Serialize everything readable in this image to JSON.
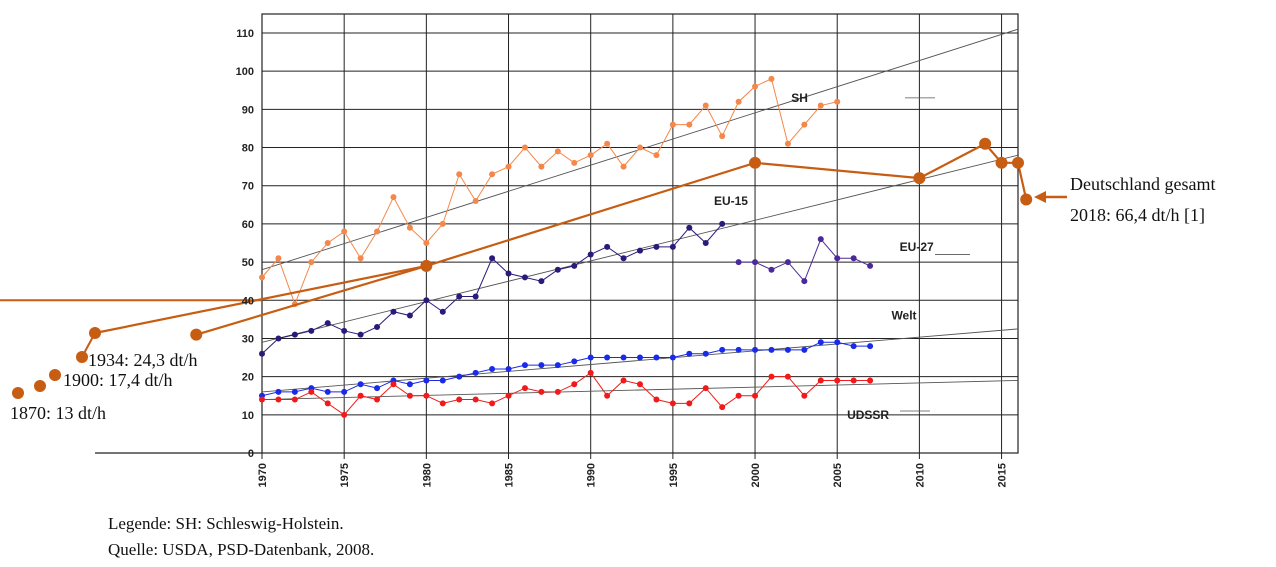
{
  "chart_data": {
    "type": "line",
    "xlim": [
      1970,
      2016
    ],
    "ylim": [
      0,
      110
    ],
    "grid": true,
    "x_ticks": [
      "1970",
      "1975",
      "1980",
      "1985",
      "1990",
      "1995",
      "2000",
      "2005",
      "2010",
      "2015"
    ],
    "y_ticks": [
      "0",
      "10",
      "20",
      "30",
      "40",
      "50",
      "60",
      "70",
      "80",
      "90",
      "100",
      "110"
    ],
    "series": [
      {
        "name": "SH",
        "color": "#f4874a",
        "x": [
          1970,
          1971,
          1972,
          1973,
          1974,
          1975,
          1976,
          1977,
          1978,
          1979,
          1980,
          1981,
          1982,
          1983,
          1984,
          1985,
          1986,
          1987,
          1988,
          1989,
          1990,
          1991,
          1992,
          1993,
          1994,
          1995,
          1996,
          1997,
          1998,
          1999,
          2000,
          2001,
          2002,
          2003,
          2004,
          2005
        ],
        "y": [
          46,
          51,
          39,
          50,
          55,
          58,
          51,
          58,
          67,
          59,
          55,
          60,
          73,
          66,
          73,
          75,
          80,
          75,
          79,
          76,
          78,
          81,
          75,
          80,
          78,
          86,
          86,
          91,
          83,
          92,
          96,
          98,
          81,
          86,
          91,
          92
        ]
      },
      {
        "name": "EU-15",
        "color": "#2a1a7a",
        "x": [
          1970,
          1971,
          1972,
          1973,
          1974,
          1975,
          1976,
          1977,
          1978,
          1979,
          1980,
          1981,
          1982,
          1983,
          1984,
          1985,
          1986,
          1987,
          1988,
          1989,
          1990,
          1991,
          1992,
          1993,
          1994,
          1995,
          1996,
          1997,
          1998
        ],
        "y": [
          26,
          30,
          31,
          32,
          34,
          32,
          31,
          33,
          37,
          36,
          40,
          37,
          41,
          41,
          51,
          47,
          46,
          45,
          48,
          49,
          52,
          54,
          51,
          53,
          54,
          54,
          59,
          55,
          60
        ]
      },
      {
        "name": "EU-27",
        "color": "#4a2a9a",
        "x": [
          1999,
          2000,
          2001,
          2002,
          2003,
          2004,
          2005,
          2006,
          2007
        ],
        "y": [
          50,
          50,
          48,
          50,
          45,
          56,
          51,
          51,
          49
        ]
      },
      {
        "name": "Welt",
        "color": "#1a2ae8",
        "x": [
          1970,
          1971,
          1972,
          1973,
          1974,
          1975,
          1976,
          1977,
          1978,
          1979,
          1980,
          1981,
          1982,
          1983,
          1984,
          1985,
          1986,
          1987,
          1988,
          1989,
          1990,
          1991,
          1992,
          1993,
          1994,
          1995,
          1996,
          1997,
          1998,
          1999,
          2000,
          2001,
          2002,
          2003,
          2004,
          2005,
          2006,
          2007
        ],
        "y": [
          15,
          16,
          16,
          17,
          16,
          16,
          18,
          17,
          19,
          18,
          19,
          19,
          20,
          21,
          22,
          22,
          23,
          23,
          23,
          24,
          25,
          25,
          25,
          25,
          25,
          25,
          26,
          26,
          27,
          27,
          27,
          27,
          27,
          27,
          29,
          29,
          28,
          28
        ]
      },
      {
        "name": "UDSSR",
        "color": "#f01a1a",
        "x": [
          1970,
          1971,
          1972,
          1973,
          1974,
          1975,
          1976,
          1977,
          1978,
          1979,
          1980,
          1981,
          1982,
          1983,
          1984,
          1985,
          1986,
          1987,
          1988,
          1989,
          1990,
          1991,
          1992,
          1993,
          1994,
          1995,
          1996,
          1997,
          1998,
          1999,
          2000,
          2001,
          2002,
          2003,
          2004,
          2005,
          2006,
          2007
        ],
        "y": [
          14,
          14,
          14,
          16,
          13,
          10,
          15,
          14,
          18,
          15,
          15,
          13,
          14,
          14,
          13,
          15,
          17,
          16,
          16,
          18,
          21,
          15,
          19,
          18,
          14,
          13,
          13,
          17,
          12,
          15,
          15,
          20,
          20,
          15,
          19,
          19,
          19,
          19
        ]
      },
      {
        "name": "Deutschland gesamt",
        "color": "#c65d12",
        "x": [
          1966,
          1980,
          2000,
          2010,
          2014,
          2015,
          2016,
          2016.5
        ],
        "y": [
          31,
          49,
          76,
          72,
          81,
          76,
          76,
          66.4
        ]
      }
    ],
    "trend_lines": [
      {
        "name": "SH",
        "x": [
          1970,
          2016
        ],
        "y": [
          48,
          111
        ]
      },
      {
        "name": "EU-15",
        "x": [
          1970,
          2016
        ],
        "y": [
          29,
          78
        ]
      },
      {
        "name": "Welt",
        "x": [
          1970,
          2016
        ],
        "y": [
          16,
          32.5
        ]
      },
      {
        "name": "UDSSR",
        "x": [
          1970,
          2016
        ],
        "y": [
          14,
          19
        ]
      }
    ],
    "historic_points": [
      {
        "label": "1870: 13 dt/h",
        "value": 13
      },
      {
        "label": "1900: 17,4 dt/h",
        "value": 17.4
      },
      {
        "label": "1934: 24,3 dt/h",
        "value": 24.3
      }
    ],
    "annotation": {
      "line1": "Deutschland gesamt",
      "line2": "2018: 66,4 dt/h [1]"
    }
  },
  "caption": {
    "legend": "Legende: SH: Schleswig-Holstein.",
    "source": "Quelle: USDA, PSD-Datenbank, 2008."
  }
}
